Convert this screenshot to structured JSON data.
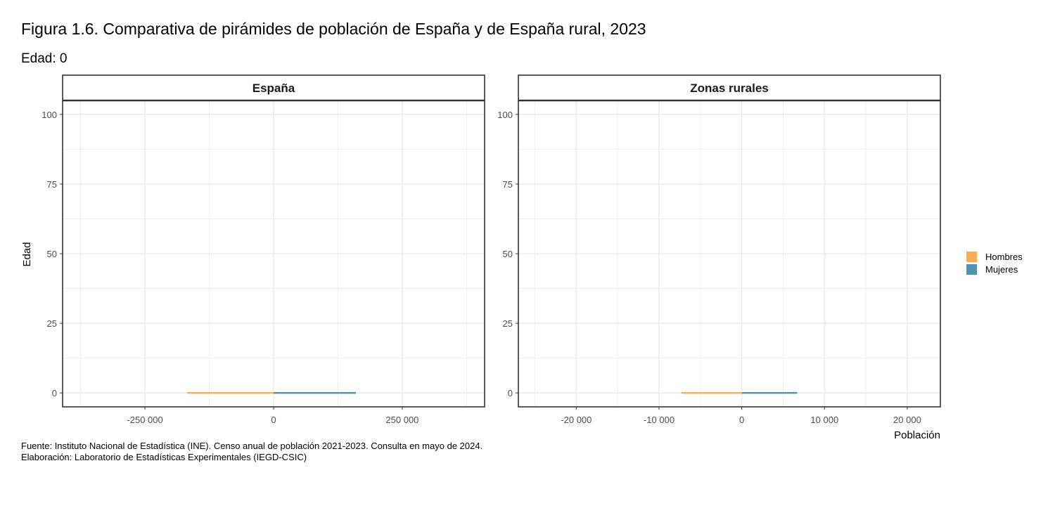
{
  "title": "Figura 1.6. Comparativa de pirámides de población de España y de España rural, 2023",
  "subtitle": "Edad: 0",
  "caption": {
    "line1": "Fuente: Instituto Nacional de Estadística (INE). Censo anual de población 2021-2023. Consulta en mayo de 2024.",
    "line2": "Elaboración: Laboratorio de Estadísticas Experimentales (IEGD-CSIC)"
  },
  "colors": {
    "hombres": "#F5AD5C",
    "mujeres": "#5590AD",
    "grid": "#EBEBEB",
    "border": "#333333"
  },
  "chart_data": {
    "type": "bar",
    "orientation": "horizontal",
    "ylabel": "Edad",
    "xlabel": "Población",
    "legend": {
      "position": "right",
      "entries": [
        "Hombres",
        "Mujeres"
      ]
    },
    "grid": true,
    "panels": [
      {
        "strip": "España",
        "xlim": [
          -410000,
          410000
        ],
        "xticks": [
          -250000,
          0,
          250000
        ],
        "xtick_labels": [
          "-250 000",
          "0",
          "250 000"
        ],
        "ylim": [
          -5,
          105
        ],
        "yticks": [
          0,
          25,
          50,
          75,
          100
        ],
        "ytick_labels": [
          "0",
          "25",
          "50",
          "75",
          "100"
        ],
        "series": [
          {
            "name": "Hombres",
            "age": [
              0
            ],
            "values": [
              -168000
            ]
          },
          {
            "name": "Mujeres",
            "age": [
              0
            ],
            "values": [
              160000
            ]
          }
        ]
      },
      {
        "strip": "Zonas rurales",
        "xlim": [
          -27000,
          24000
        ],
        "xticks": [
          -20000,
          -10000,
          0,
          10000,
          20000
        ],
        "xtick_labels": [
          "-20 000",
          "-10 000",
          "0",
          "10 000",
          "20 000"
        ],
        "ylim": [
          -5,
          105
        ],
        "yticks": [
          0,
          25,
          50,
          75,
          100
        ],
        "ytick_labels": [
          "0",
          "25",
          "50",
          "75",
          "100"
        ],
        "series": [
          {
            "name": "Hombres",
            "age": [
              0
            ],
            "values": [
              -7300
            ]
          },
          {
            "name": "Mujeres",
            "age": [
              0
            ],
            "values": [
              6700
            ]
          }
        ]
      }
    ]
  }
}
